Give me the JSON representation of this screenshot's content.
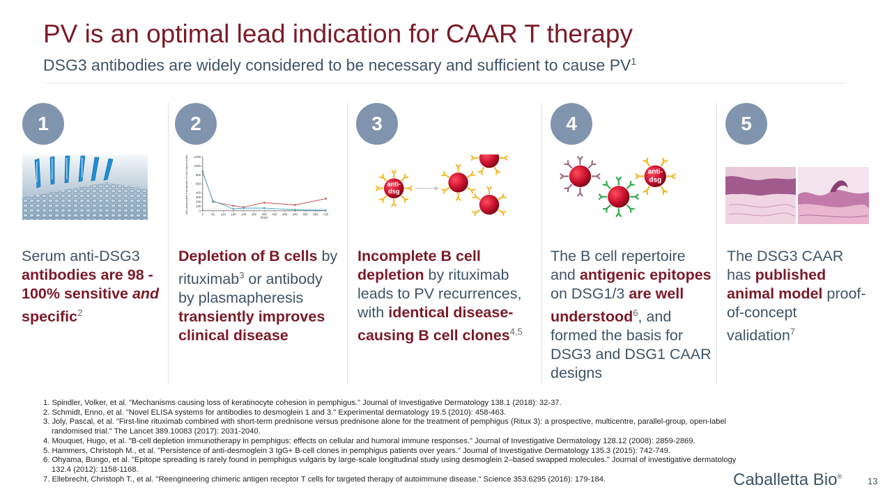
{
  "header": {
    "title": "PV is an optimal lead indication for CAAR T therapy",
    "subtitle": "DSG3 antibodies are widely considered to be necessary and sufficient to cause PV",
    "subtitle_sup": "1"
  },
  "columns": [
    {
      "number": "1",
      "p1": "Serum anti-DSG3 ",
      "b1": "antibodies are 98 - 100% sensitive ",
      "b1i": "and",
      "b1b": " specific",
      "sup": "2"
    },
    {
      "number": "2",
      "b1": "Depletion of B cells",
      "p1": " by rituximab",
      "sup1": "3",
      "p2": " or antibody by plasmapheresis ",
      "b2": "transiently improves clinical disease"
    },
    {
      "number": "3",
      "b1": "Incomplete B cell depletion",
      "p1": " by rituximab leads to PV recurrences, with ",
      "b2": "identical disease-causing B cell clones",
      "sup": "4,5",
      "diagram_label": "anti-dsg"
    },
    {
      "number": "4",
      "p1": "The B cell repertoire and ",
      "b1": "antigenic epitopes",
      "p2": " on DSG1/3 ",
      "b2": "are well understood",
      "sup": "6",
      "p3": ", and formed the basis for DSG3 and DSG1 CAAR designs",
      "diagram_label": "anti-dsg"
    },
    {
      "number": "5",
      "p1": "The DSG3 CAAR has ",
      "b1": "published animal model",
      "p2": " proof-of-concept validation",
      "sup": "7"
    }
  ],
  "chart_data": {
    "type": "line",
    "xlabel": "Days",
    "ylabel": "Anti-desmoglein 3 antibodies ELISA values (U/mL)",
    "x_ticks": [
      "0",
      "60",
      "120",
      "180",
      "240",
      "300",
      "360",
      "420",
      "480",
      "540",
      "600",
      "660",
      "720"
    ],
    "y_ticks": [
      "0",
      "100",
      "200",
      "300",
      "400",
      "600",
      "800",
      "1000",
      "1200"
    ],
    "xlim": [
      0,
      720
    ],
    "series": [
      {
        "color": "#c0504d",
        "x": [
          0,
          60,
          180,
          240,
          360,
          540,
          720
        ],
        "y": [
          880,
          200,
          110,
          80,
          180,
          130,
          270
        ]
      },
      {
        "color": "#4bacc6",
        "x": [
          0,
          60,
          180,
          240,
          360,
          540,
          720
        ],
        "y": [
          860,
          220,
          40,
          60,
          60,
          20,
          10
        ]
      }
    ]
  },
  "references": [
    "1. Spindler, Volker, et al. \"Mechanisms causing loss of keratinocyte cohesion in pemphigus.\" Journal of Investigative Dermatology 138.1 (2018): 32-37.",
    "2. Schmidt, Enno, et al. \"Novel ELISA systems for antibodies to desmoglein 1 and 3.\" Experimental dermatology 19.5 (2010): 458-463.",
    "3. Joly, Pascal, et al. \"First-line rituximab combined with short-term prednisone versus prednisone alone for the treatment of pemphigus (Ritux 3): a prospective, multicentre, parallel-group, open-label randomised trial.\" The Lancet 389.10083 (2017): 2031-2040.",
    "4. Mouquet, Hugo, et al. \"B-cell depletion immunotherapy in pemphigus: effects on cellular and humoral immune responses.\" Journal of Investigative Dermatology 128.12 (2008): 2859-2869.",
    "5. Hammers, Christoph M., et al. \"Persistence of anti-desmoglein 3 IgG+ B-cell clones in pemphigus patients over years.\" Journal of Investigative Dermatology 135.3 (2015): 742-749.",
    "6. Ohyama, Bungo, et al. \"Epitope spreading is rarely found in pemphigus vulgaris by large-scale longitudinal study using desmoglein 2–based swapped molecules.\" Journal of investigative dermatology 132.4 (2012): 1158-1168.",
    "7. Ellebrecht, Christoph T., et al. \"Reengineering chimeric antigen receptor T cells for targeted therapy of autoimmune disease.\" Science 353.6295 (2016): 179-184."
  ],
  "footer": {
    "logo_text": "Caballetta Bio",
    "logo_mark": "®",
    "page_number": "13"
  },
  "colors": {
    "title": "#7b1a27",
    "accent_bold": "#7b1a27",
    "body_text": "#3f5366",
    "number_circle": "#8194ad",
    "cell_red": "#c8102e",
    "antibody_yellow": "#f2b61f",
    "antibody_mauve": "#9c6b7f",
    "antibody_green": "#2faa4a"
  }
}
